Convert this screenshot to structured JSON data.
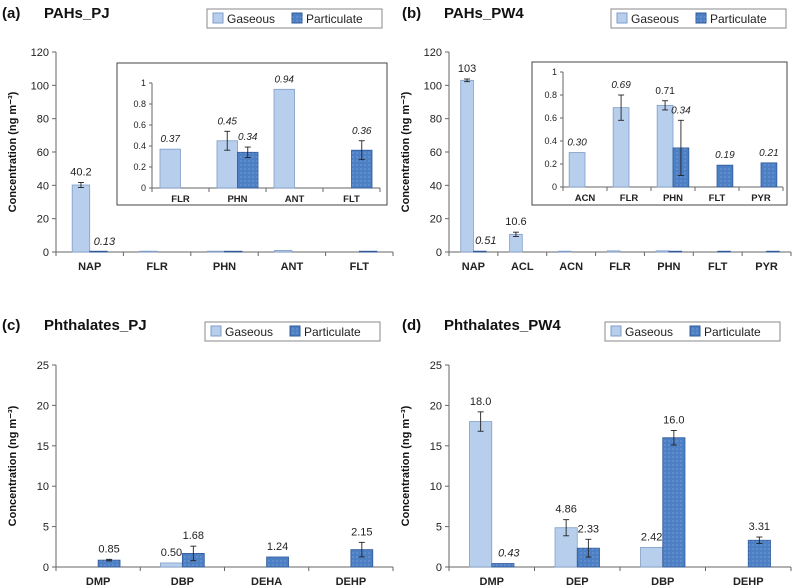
{
  "legend": {
    "gaseous": "Gaseous",
    "particulate": "Particulate"
  },
  "colors": {
    "gaseous": "#b7cfec",
    "gaseous_edge": "#7f9dc7",
    "particulate": "#4d7fc4",
    "particulate_edge": "#30599a"
  },
  "chart_data": [
    {
      "panel": "(a)",
      "title": "PAHs_PJ",
      "type": "bar",
      "ylabel": "Concentration (ng m⁻³)",
      "ylim": [
        0,
        120
      ],
      "yticks": [
        0,
        20,
        40,
        60,
        80,
        100,
        120
      ],
      "categories": [
        "NAP",
        "FLR",
        "PHN",
        "ANT",
        "FLT"
      ],
      "series": [
        {
          "name": "Gaseous",
          "values": [
            40.2,
            0.37,
            0.45,
            0.94,
            null
          ],
          "labels": [
            "40.2",
            "",
            "",
            "",
            ""
          ]
        },
        {
          "name": "Particulate",
          "values": [
            0.13,
            null,
            0.34,
            null,
            0.36
          ],
          "labels": [
            "0.13",
            "",
            "",
            "",
            ""
          ]
        }
      ],
      "inset": {
        "ylim": [
          0,
          1
        ],
        "yticks": [
          "0",
          "0.2",
          "0.4",
          "0.6",
          "0.8",
          "1"
        ],
        "categories": [
          "FLR",
          "PHN",
          "ANT",
          "FLT"
        ],
        "series": [
          {
            "name": "Gaseous",
            "values": [
              0.37,
              0.45,
              0.94,
              null
            ],
            "labels": [
              "0.37",
              "0.45",
              "0.94",
              ""
            ]
          },
          {
            "name": "Particulate",
            "values": [
              null,
              0.34,
              null,
              0.36
            ],
            "labels": [
              "",
              "0.34",
              "",
              "0.36"
            ]
          }
        ]
      }
    },
    {
      "panel": "(b)",
      "title": "PAHs_PW4",
      "type": "bar",
      "ylabel": "Concentration (ng m⁻³)",
      "ylim": [
        0,
        120
      ],
      "yticks": [
        0,
        20,
        40,
        60,
        80,
        100,
        120
      ],
      "categories": [
        "NAP",
        "ACL",
        "ACN",
        "FLR",
        "PHN",
        "FLT",
        "PYR"
      ],
      "series": [
        {
          "name": "Gaseous",
          "values": [
            103,
            10.6,
            0.3,
            0.69,
            0.71,
            null,
            null
          ],
          "labels": [
            "103",
            "10.6",
            "",
            "",
            "",
            "",
            ""
          ]
        },
        {
          "name": "Particulate",
          "values": [
            0.51,
            null,
            null,
            null,
            0.34,
            0.19,
            0.21
          ],
          "labels": [
            "0.51",
            "",
            "",
            "",
            "",
            "",
            ""
          ]
        }
      ],
      "inset": {
        "ylim": [
          0,
          1
        ],
        "yticks": [
          "0",
          "0.2",
          "0.4",
          "0.6",
          "0.8",
          "1"
        ],
        "categories": [
          "ACN",
          "FLR",
          "PHN",
          "FLT",
          "PYR"
        ],
        "series": [
          {
            "name": "Gaseous",
            "values": [
              0.3,
              0.69,
              0.71,
              null,
              null
            ],
            "labels": [
              "0.30",
              "0.69",
              "0.71",
              "",
              ""
            ]
          },
          {
            "name": "Particulate",
            "values": [
              null,
              null,
              0.34,
              0.19,
              0.21
            ],
            "labels": [
              "",
              "",
              "0.34",
              "0.19",
              "0.21"
            ]
          }
        ]
      }
    },
    {
      "panel": "(c)",
      "title": "Phthalates_PJ",
      "type": "bar",
      "ylabel": "Concentration (ng m⁻³)",
      "ylim": [
        0,
        25
      ],
      "yticks": [
        0,
        5,
        10,
        15,
        20,
        25
      ],
      "categories": [
        "DMP",
        "DBP",
        "DEHA",
        "DEHP"
      ],
      "series": [
        {
          "name": "Gaseous",
          "values": [
            null,
            0.5,
            null,
            null
          ],
          "labels": [
            "",
            "0.50",
            "",
            ""
          ]
        },
        {
          "name": "Particulate",
          "values": [
            0.85,
            1.68,
            1.24,
            2.15
          ],
          "labels": [
            "0.85",
            "1.68",
            "1.24",
            "2.15"
          ]
        }
      ]
    },
    {
      "panel": "(d)",
      "title": "Phthalates_PW4",
      "type": "bar",
      "ylabel": "Concentration (ng m⁻³)",
      "ylim": [
        0,
        25
      ],
      "yticks": [
        0,
        5,
        10,
        15,
        20,
        25
      ],
      "categories": [
        "DMP",
        "DEP",
        "DBP",
        "DEHP"
      ],
      "series": [
        {
          "name": "Gaseous",
          "values": [
            18.0,
            4.86,
            2.42,
            null
          ],
          "labels": [
            "18.0",
            "4.86",
            "2.42",
            ""
          ]
        },
        {
          "name": "Particulate",
          "values": [
            0.43,
            2.33,
            16.0,
            3.31
          ],
          "labels": [
            "0.43",
            "2.33",
            "16.0",
            "3.31"
          ]
        }
      ]
    }
  ]
}
